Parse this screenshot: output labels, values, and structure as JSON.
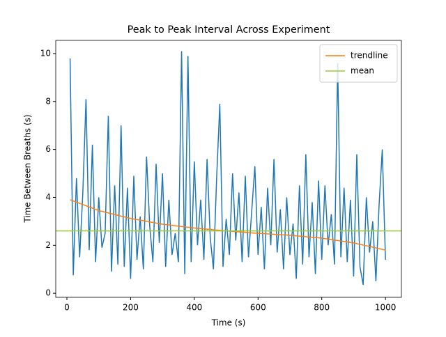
{
  "chart_data": {
    "type": "line",
    "title": "Peak to Peak Interval Across Experiment",
    "xlabel": "Time (s)",
    "ylabel": "Time Between Breaths (s)",
    "xlim": [
      -35,
      1050
    ],
    "ylim": [
      -0.17,
      10.55
    ],
    "xticks": [
      0,
      200,
      400,
      600,
      800,
      1000
    ],
    "yticks": [
      0,
      2,
      4,
      6,
      8,
      10
    ],
    "legend": "upper right",
    "series": [
      {
        "color": "#1f77b4",
        "x": [
          10,
          20,
          30,
          40,
          50,
          60,
          70,
          80,
          90,
          100,
          110,
          120,
          130,
          140,
          150,
          160,
          170,
          180,
          190,
          200,
          210,
          220,
          230,
          240,
          250,
          260,
          270,
          280,
          290,
          300,
          310,
          320,
          330,
          340,
          350,
          360,
          370,
          380,
          390,
          400,
          410,
          420,
          430,
          440,
          450,
          460,
          470,
          480,
          490,
          500,
          510,
          520,
          530,
          540,
          550,
          560,
          570,
          580,
          590,
          600,
          610,
          620,
          630,
          640,
          650,
          660,
          670,
          680,
          690,
          700,
          710,
          720,
          730,
          740,
          750,
          760,
          770,
          780,
          790,
          800,
          810,
          820,
          830,
          840,
          850,
          860,
          870,
          880,
          890,
          900,
          910,
          920,
          930,
          940,
          950,
          960,
          970,
          980,
          990,
          1000
        ],
        "values": [
          9.8,
          0.75,
          4.8,
          1.5,
          4.2,
          8.1,
          1.8,
          6.2,
          1.3,
          4.0,
          1.9,
          2.5,
          7.4,
          0.9,
          4.5,
          1.2,
          7.0,
          1.1,
          4.4,
          0.6,
          4.9,
          1.4,
          3.2,
          1.0,
          5.7,
          2.8,
          1.3,
          5.4,
          2.1,
          5.0,
          1.1,
          3.9,
          1.6,
          2.5,
          1.3,
          10.1,
          0.8,
          9.9,
          1.3,
          5.5,
          2.0,
          3.9,
          1.4,
          5.6,
          2.3,
          1.0,
          4.8,
          7.9,
          1.1,
          3.1,
          1.6,
          5.0,
          2.2,
          4.2,
          1.3,
          4.9,
          1.5,
          3.4,
          5.3,
          1.6,
          3.6,
          1.0,
          4.4,
          2.0,
          5.6,
          1.7,
          3.5,
          1.0,
          4.0,
          1.6,
          2.9,
          0.6,
          4.5,
          1.2,
          5.8,
          1.5,
          3.8,
          0.8,
          4.7,
          1.4,
          4.5,
          2.0,
          3.3,
          1.2,
          9.6,
          1.5,
          4.4,
          1.3,
          3.9,
          0.7,
          5.8,
          1.1,
          0.35,
          4.0,
          1.7,
          3.0,
          0.5,
          3.7,
          6.0,
          1.4
        ]
      },
      {
        "name": "trendline",
        "color": "#ff7f0e",
        "x": [
          10,
          100,
          200,
          300,
          400,
          500,
          600,
          700,
          800,
          900,
          1000
        ],
        "values": [
          3.9,
          3.45,
          3.12,
          2.88,
          2.72,
          2.6,
          2.5,
          2.42,
          2.3,
          2.1,
          1.8
        ]
      }
    ],
    "hlines": [
      {
        "name": "mean",
        "color": "#9acd32",
        "value": 2.6
      }
    ]
  }
}
